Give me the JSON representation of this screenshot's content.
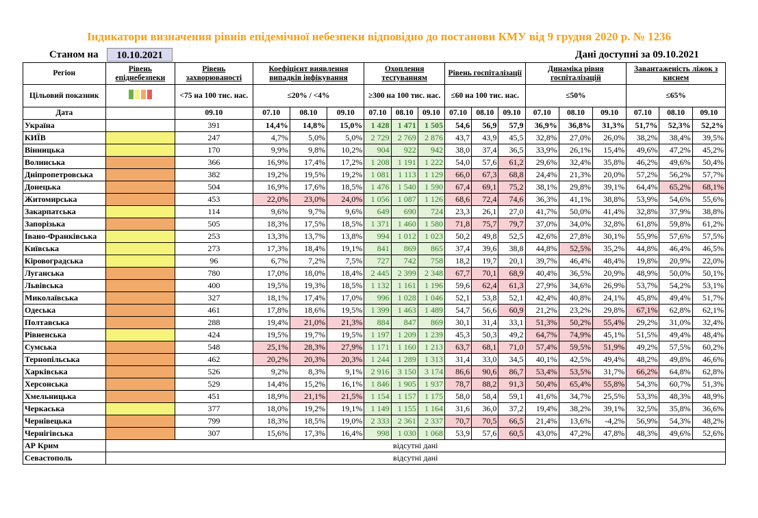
{
  "page": {
    "title": "Індикатори визначення рівнів епідемічної небезпеки відповідно до постанови КМУ від 9 грудня 2020 р. № 1236",
    "date_label": "Станом на",
    "date_value": "10.10.2021",
    "data_available": "Дані доступні за  09.10.2021"
  },
  "colors": {
    "title": "#f5a016",
    "level_yellow": "#f5f37a",
    "level_orange": "#f2aa6a",
    "level_red": "#e85b5b",
    "highlight_green": "#e3f2d9",
    "highlight_red": "#f8d0d3",
    "legend": [
      "#70ad47",
      "#f5f37a",
      "#f2aa6a",
      "#e85b5b"
    ]
  },
  "header": {
    "region": "Регіон",
    "level": "Рівень епіднебезпеки",
    "incidence": "Рівень захворюваності",
    "detection": "Коефіцієнт виявлення випадків інфікування",
    "testing": "Охоплення тестуванням",
    "hospital": "Рівень госпіталізації",
    "dynamics": "Динаміка рівня госпіталізацій",
    "beds": "Завантаженість ліжок з киснем"
  },
  "target": {
    "label": "Цільовий показник",
    "incidence": "<75 на 100 тис. нас.",
    "detection": "≤20% / <4%",
    "testing": "≥300 на 100 тис. нас.",
    "hospital": "≤60 на 100 тис. нас.",
    "dynamics": "≤50%",
    "beds": "≤65%"
  },
  "dates": {
    "label": "Дата",
    "incidence": [
      "09.10"
    ],
    "detection": [
      "07.10",
      "08.10",
      "09.10"
    ],
    "testing": [
      "07.10",
      "08.10",
      "09.10"
    ],
    "hospital": [
      "07.10",
      "08.10",
      "09.10"
    ],
    "dynamics": [
      "07.10",
      "08.10",
      "09.10"
    ],
    "beds": [
      "07.10",
      "08.10",
      "09.10"
    ]
  },
  "rows": [
    {
      "region": "Україна",
      "level": "",
      "inc": "391",
      "det": [
        "14,4%",
        "14,8%",
        "15,0%"
      ],
      "tst": [
        "1 428",
        "1 471",
        "1 505"
      ],
      "hos": [
        "54,6",
        "56,9",
        "57,9"
      ],
      "dyn": [
        "36,9%",
        "36,8%",
        "31,3%"
      ],
      "bed": [
        "51,7%",
        "52,3%",
        "52,2%"
      ],
      "red": []
    },
    {
      "region": "КИЇВ",
      "level": "y",
      "inc": "247",
      "det": [
        "4,7%",
        "5,0%",
        "5,0%"
      ],
      "tst": [
        "2 729",
        "2 769",
        "2 876"
      ],
      "hos": [
        "43,7",
        "43,9",
        "45,5"
      ],
      "dyn": [
        "32,8%",
        "27,0%",
        "26,0%"
      ],
      "bed": [
        "38,2%",
        "38,4%",
        "39,5%"
      ],
      "red": []
    },
    {
      "region": "Вінницька",
      "level": "y",
      "inc": "170",
      "det": [
        "9,9%",
        "9,8%",
        "10,2%"
      ],
      "tst": [
        "904",
        "922",
        "942"
      ],
      "hos": [
        "38,0",
        "37,4",
        "36,5"
      ],
      "dyn": [
        "33,9%",
        "26,1%",
        "15,4%"
      ],
      "bed": [
        "49,6%",
        "47,2%",
        "45,2%"
      ],
      "red": []
    },
    {
      "region": "Волинська",
      "level": "o",
      "inc": "366",
      "det": [
        "16,9%",
        "17,4%",
        "17,2%"
      ],
      "tst": [
        "1 208",
        "1 191",
        "1 222"
      ],
      "hos": [
        "54,0",
        "57,6",
        "61,2"
      ],
      "dyn": [
        "29,6%",
        "32,4%",
        "35,8%"
      ],
      "bed": [
        "46,2%",
        "49,6%",
        "50,4%"
      ],
      "red": [
        "hos2"
      ]
    },
    {
      "region": "Дніпропетровська",
      "level": "o",
      "inc": "382",
      "det": [
        "19,2%",
        "19,5%",
        "19,2%"
      ],
      "tst": [
        "1 081",
        "1 113",
        "1 129"
      ],
      "hos": [
        "66,0",
        "67,3",
        "68,8"
      ],
      "dyn": [
        "24,4%",
        "21,3%",
        "20,0%"
      ],
      "bed": [
        "57,2%",
        "56,2%",
        "57,7%"
      ],
      "red": [
        "hos0",
        "hos1",
        "hos2"
      ]
    },
    {
      "region": "Донецька",
      "level": "o",
      "inc": "504",
      "det": [
        "16,9%",
        "17,6%",
        "18,5%"
      ],
      "tst": [
        "1 476",
        "1 540",
        "1 590"
      ],
      "hos": [
        "67,4",
        "69,1",
        "75,2"
      ],
      "dyn": [
        "38,1%",
        "29,8%",
        "39,1%"
      ],
      "bed": [
        "64,4%",
        "65,2%",
        "68,1%"
      ],
      "red": [
        "hos0",
        "hos1",
        "hos2",
        "bed1",
        "bed2"
      ]
    },
    {
      "region": "Житомирська",
      "level": "o",
      "inc": "453",
      "det": [
        "22,0%",
        "23,0%",
        "24,0%"
      ],
      "tst": [
        "1 056",
        "1 087",
        "1 126"
      ],
      "hos": [
        "68,6",
        "72,4",
        "74,6"
      ],
      "dyn": [
        "36,3%",
        "41,1%",
        "38,8%"
      ],
      "bed": [
        "53,9%",
        "54,6%",
        "55,6%"
      ],
      "red": [
        "det0",
        "det1",
        "det2",
        "hos0",
        "hos1",
        "hos2"
      ]
    },
    {
      "region": "Закарпатська",
      "level": "y",
      "inc": "114",
      "det": [
        "9,6%",
        "9,7%",
        "9,6%"
      ],
      "tst": [
        "649",
        "690",
        "724"
      ],
      "hos": [
        "23,3",
        "26,1",
        "27,0"
      ],
      "dyn": [
        "41,7%",
        "50,0%",
        "41,4%"
      ],
      "bed": [
        "32,8%",
        "37,9%",
        "38,8%"
      ],
      "red": []
    },
    {
      "region": "Запорізька",
      "level": "o",
      "inc": "505",
      "det": [
        "18,3%",
        "17,5%",
        "18,5%"
      ],
      "tst": [
        "1 371",
        "1 460",
        "1 580"
      ],
      "hos": [
        "71,8",
        "75,7",
        "79,7"
      ],
      "dyn": [
        "37,0%",
        "34,0%",
        "32,8%"
      ],
      "bed": [
        "61,8%",
        "59,8%",
        "61,2%"
      ],
      "red": [
        "hos0",
        "hos1",
        "hos2"
      ]
    },
    {
      "region": "Івано-Франківська",
      "level": "y",
      "inc": "253",
      "det": [
        "13,3%",
        "13,7%",
        "13,8%"
      ],
      "tst": [
        "994",
        "1 012",
        "1 023"
      ],
      "hos": [
        "50,2",
        "49,8",
        "52,5"
      ],
      "dyn": [
        "42,6%",
        "27,8%",
        "30,1%"
      ],
      "bed": [
        "55,9%",
        "57,6%",
        "57,5%"
      ],
      "red": [],
      "two": true
    },
    {
      "region": "Київська",
      "level": "y",
      "inc": "273",
      "det": [
        "17,3%",
        "18,4%",
        "19,1%"
      ],
      "tst": [
        "841",
        "869",
        "865"
      ],
      "hos": [
        "37,4",
        "39,6",
        "38,8"
      ],
      "dyn": [
        "44,8%",
        "52,5%",
        "35,2%"
      ],
      "bed": [
        "44,8%",
        "46,4%",
        "46,5%"
      ],
      "red": [
        "dyn1"
      ]
    },
    {
      "region": "Кіровоградська",
      "level": "y",
      "inc": "96",
      "det": [
        "6,7%",
        "7,2%",
        "7,5%"
      ],
      "tst": [
        "727",
        "742",
        "758"
      ],
      "hos": [
        "18,2",
        "19,7",
        "20,1"
      ],
      "dyn": [
        "39,7%",
        "46,4%",
        "48,4%"
      ],
      "bed": [
        "19,8%",
        "20,9%",
        "22,0%"
      ],
      "red": []
    },
    {
      "region": "Луганська",
      "level": "o",
      "inc": "780",
      "det": [
        "17,0%",
        "18,0%",
        "18,4%"
      ],
      "tst": [
        "2 445",
        "2 399",
        "2 348"
      ],
      "hos": [
        "67,7",
        "70,1",
        "68,9"
      ],
      "dyn": [
        "40,4%",
        "36,5%",
        "20,9%"
      ],
      "bed": [
        "48,9%",
        "50,0%",
        "50,1%"
      ],
      "red": [
        "hos0",
        "hos1",
        "hos2"
      ]
    },
    {
      "region": "Львівська",
      "level": "o",
      "inc": "400",
      "det": [
        "19,5%",
        "19,3%",
        "18,5%"
      ],
      "tst": [
        "1 132",
        "1 161",
        "1 196"
      ],
      "hos": [
        "59,6",
        "62,4",
        "61,3"
      ],
      "dyn": [
        "27,9%",
        "34,6%",
        "26,9%"
      ],
      "bed": [
        "53,7%",
        "54,2%",
        "53,1%"
      ],
      "red": [
        "hos1",
        "hos2"
      ]
    },
    {
      "region": "Миколаївська",
      "level": "o",
      "inc": "327",
      "det": [
        "18,1%",
        "17,4%",
        "17,0%"
      ],
      "tst": [
        "996",
        "1 028",
        "1 046"
      ],
      "hos": [
        "52,1",
        "53,8",
        "52,1"
      ],
      "dyn": [
        "42,4%",
        "40,8%",
        "24,1%"
      ],
      "bed": [
        "45,8%",
        "49,4%",
        "51,7%"
      ],
      "red": []
    },
    {
      "region": "Одеська",
      "level": "o",
      "inc": "461",
      "det": [
        "17,8%",
        "18,6%",
        "19,5%"
      ],
      "tst": [
        "1 399",
        "1 463",
        "1 489"
      ],
      "hos": [
        "54,7",
        "56,6",
        "60,9"
      ],
      "dyn": [
        "21,2%",
        "23,2%",
        "29,8%"
      ],
      "bed": [
        "67,1%",
        "62,8%",
        "62,1%"
      ],
      "red": [
        "hos2",
        "bed0"
      ]
    },
    {
      "region": "Полтавська",
      "level": "o",
      "inc": "288",
      "det": [
        "19,4%",
        "21,0%",
        "21,3%"
      ],
      "tst": [
        "884",
        "847",
        "869"
      ],
      "hos": [
        "30,1",
        "31,4",
        "33,1"
      ],
      "dyn": [
        "51,3%",
        "50,2%",
        "55,4%"
      ],
      "bed": [
        "29,2%",
        "31,0%",
        "32,4%"
      ],
      "red": [
        "det1",
        "det2",
        "dyn0",
        "dyn1",
        "dyn2"
      ]
    },
    {
      "region": "Рівненська",
      "level": "y",
      "inc": "424",
      "det": [
        "19,5%",
        "19,7%",
        "19,5%"
      ],
      "tst": [
        "1 197",
        "1 209",
        "1 239"
      ],
      "hos": [
        "45,3",
        "50,3",
        "49,2"
      ],
      "dyn": [
        "64,7%",
        "74,9%",
        "45,1%"
      ],
      "bed": [
        "51,5%",
        "49,4%",
        "48,4%"
      ],
      "red": [
        "dyn0",
        "dyn1"
      ]
    },
    {
      "region": "Сумська",
      "level": "o",
      "inc": "548",
      "det": [
        "25,1%",
        "28,3%",
        "27,9%"
      ],
      "tst": [
        "1 171",
        "1 160",
        "1 213"
      ],
      "hos": [
        "63,7",
        "68,1",
        "71,0"
      ],
      "dyn": [
        "57,4%",
        "59,5%",
        "51,9%"
      ],
      "bed": [
        "49,2%",
        "57,5%",
        "60,2%"
      ],
      "red": [
        "det0",
        "det1",
        "det2",
        "hos0",
        "hos1",
        "hos2",
        "dyn0",
        "dyn1",
        "dyn2"
      ]
    },
    {
      "region": "Тернопільська",
      "level": "o",
      "inc": "462",
      "det": [
        "20,2%",
        "20,3%",
        "20,3%"
      ],
      "tst": [
        "1 244",
        "1 289",
        "1 313"
      ],
      "hos": [
        "31,4",
        "33,0",
        "34,5"
      ],
      "dyn": [
        "40,1%",
        "42,5%",
        "49,4%"
      ],
      "bed": [
        "48,2%",
        "49,8%",
        "46,6%"
      ],
      "red": [
        "det0",
        "det1",
        "det2"
      ]
    },
    {
      "region": "Харківська",
      "level": "o",
      "inc": "526",
      "det": [
        "9,2%",
        "8,3%",
        "9,1%"
      ],
      "tst": [
        "2 916",
        "3 150",
        "3 174"
      ],
      "hos": [
        "86,6",
        "90,6",
        "86,7"
      ],
      "dyn": [
        "53,4%",
        "53,5%",
        "31,7%"
      ],
      "bed": [
        "66,2%",
        "64,8%",
        "62,8%"
      ],
      "red": [
        "hos0",
        "hos1",
        "hos2",
        "dyn0",
        "dyn1",
        "bed0"
      ]
    },
    {
      "region": "Херсонська",
      "level": "o",
      "inc": "529",
      "det": [
        "14,4%",
        "15,2%",
        "16,1%"
      ],
      "tst": [
        "1 846",
        "1 905",
        "1 937"
      ],
      "hos": [
        "78,7",
        "88,2",
        "91,3"
      ],
      "dyn": [
        "50,4%",
        "65,4%",
        "55,8%"
      ],
      "bed": [
        "54,3%",
        "60,7%",
        "51,3%"
      ],
      "red": [
        "hos0",
        "hos1",
        "hos2",
        "dyn0",
        "dyn1",
        "dyn2"
      ]
    },
    {
      "region": "Хмельницька",
      "level": "o",
      "inc": "451",
      "det": [
        "18,9%",
        "21,1%",
        "21,5%"
      ],
      "tst": [
        "1 154",
        "1 157",
        "1 175"
      ],
      "hos": [
        "58,0",
        "58,4",
        "59,1"
      ],
      "dyn": [
        "41,6%",
        "34,7%",
        "25,5%"
      ],
      "bed": [
        "53,3%",
        "48,3%",
        "48,9%"
      ],
      "red": [
        "det1",
        "det2"
      ]
    },
    {
      "region": "Черкаська",
      "level": "y",
      "inc": "377",
      "det": [
        "18,0%",
        "19,2%",
        "19,1%"
      ],
      "tst": [
        "1 149",
        "1 155",
        "1 164"
      ],
      "hos": [
        "31,6",
        "36,0",
        "37,2"
      ],
      "dyn": [
        "19,4%",
        "38,2%",
        "39,1%"
      ],
      "bed": [
        "32,5%",
        "35,8%",
        "36,6%"
      ],
      "red": []
    },
    {
      "region": "Чернівецька",
      "level": "o",
      "inc": "799",
      "det": [
        "18,3%",
        "18,5%",
        "19,0%"
      ],
      "tst": [
        "2 333",
        "2 361",
        "2 337"
      ],
      "hos": [
        "70,7",
        "70,5",
        "66,5"
      ],
      "dyn": [
        "21,4%",
        "13,6%",
        "-4,2%"
      ],
      "bed": [
        "56,9%",
        "54,3%",
        "48,2%"
      ],
      "red": [
        "hos0",
        "hos1",
        "hos2"
      ]
    },
    {
      "region": "Чернігівська",
      "level": "o",
      "inc": "307",
      "det": [
        "15,6%",
        "17,3%",
        "16,4%"
      ],
      "tst": [
        "998",
        "1 030",
        "1 068"
      ],
      "hos": [
        "53,9",
        "57,6",
        "60,5"
      ],
      "dyn": [
        "43,0%",
        "47,2%",
        "47,8%"
      ],
      "bed": [
        "48,3%",
        "49,6%",
        "52,6%"
      ],
      "red": [
        "hos2"
      ]
    }
  ],
  "missing_rows": [
    {
      "region": "АР Крим",
      "text": "відсутні дані"
    },
    {
      "region": "Севастополь",
      "text": "відсутні дані"
    }
  ]
}
